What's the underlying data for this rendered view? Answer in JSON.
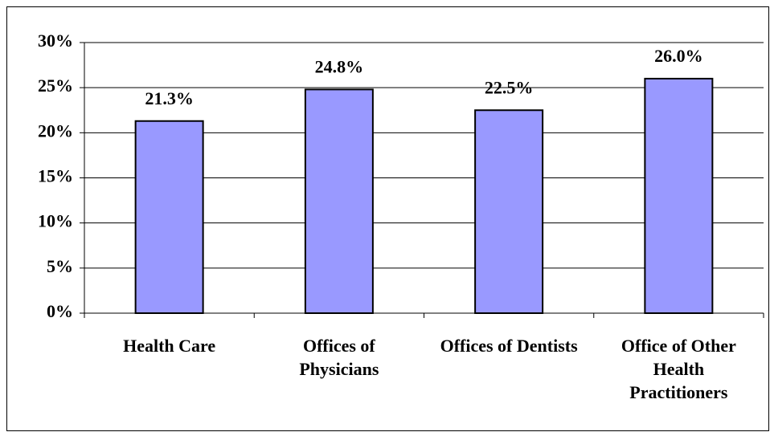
{
  "chart_data": {
    "type": "bar",
    "categories": [
      "Health Care",
      "Offices of Physicians",
      "Offices of Dentists",
      "Office of Other Health Practitioners"
    ],
    "values": [
      21.3,
      24.8,
      22.5,
      26.0
    ],
    "value_labels": [
      "21.3%",
      "24.8%",
      "22.5%",
      "26.0%"
    ],
    "color": "#9999ff",
    "ylim": [
      0,
      30
    ],
    "yticks": [
      {
        "value": 0,
        "label": "0%"
      },
      {
        "value": 5,
        "label": "5%"
      },
      {
        "value": 10,
        "label": "10%"
      },
      {
        "value": 15,
        "label": "15%"
      },
      {
        "value": 20,
        "label": "20%"
      },
      {
        "value": 25,
        "label": "25%"
      },
      {
        "value": 30,
        "label": "30%"
      }
    ],
    "grid": true
  }
}
